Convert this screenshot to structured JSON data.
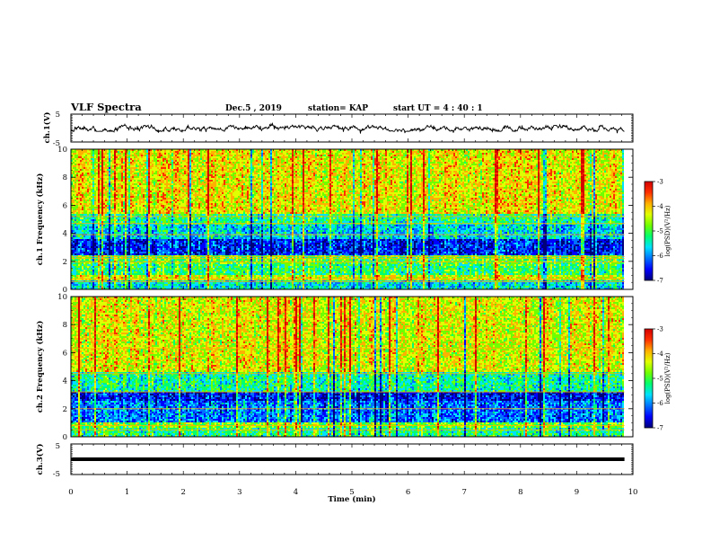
{
  "header": {
    "title": "VLF Spectra",
    "date": "Dec.5  , 2019",
    "station": "station= KAP",
    "start": "start  UT =  4 : 40 : 1"
  },
  "colors": {
    "spectrum_scale": [
      "#00007a",
      "#0000ff",
      "#0070ff",
      "#00e0ff",
      "#00ff70",
      "#70ff00",
      "#e0ff00",
      "#ffb000",
      "#ff3000",
      "#d40000"
    ],
    "trace": "#000000"
  },
  "chart_data": [
    {
      "type": "line",
      "panel": "ch1-voltage",
      "ylabel": "ch.1(V)",
      "ylim": [
        -5,
        5
      ],
      "yticks": [
        "5",
        "-5"
      ],
      "xlim": [
        0,
        10
      ],
      "series": [
        {
          "x_end": 9.85,
          "level_range": [
            -1.2,
            1.0
          ],
          "mean": -0.1
        }
      ]
    },
    {
      "type": "heatmap",
      "panel": "ch1-spectrogram",
      "ylabel": "ch.1 Frequency (kHz)",
      "xlim": [
        0,
        10
      ],
      "ylim": [
        0,
        10
      ],
      "yticks": [
        "0",
        "2",
        "4",
        "6",
        "8",
        "10"
      ],
      "x_data_end": 9.85,
      "colorbar": {
        "label": "log(PSD)(V²/Hz)",
        "range": [
          -7,
          -3
        ],
        "ticks": [
          "-3",
          "-4",
          "-5",
          "-6",
          "-7"
        ]
      },
      "bands_khz": [
        {
          "range": [
            0,
            0.6
          ],
          "value": -5.5
        },
        {
          "range": [
            0.6,
            1.0
          ],
          "value": -4.4
        },
        {
          "range": [
            1.0,
            1.8
          ],
          "value": -5.1
        },
        {
          "range": [
            1.8,
            2.4
          ],
          "value": -4.9
        },
        {
          "range": [
            2.4,
            3.6
          ],
          "value": -6.3
        },
        {
          "range": [
            3.6,
            4.6
          ],
          "value": -5.6
        },
        {
          "range": [
            4.6,
            5.4
          ],
          "value": -5.2
        },
        {
          "range": [
            5.4,
            10.0
          ],
          "value": -4.3
        }
      ],
      "lines_khz": [
        0.55,
        0.75,
        1.95,
        2.2,
        2.35,
        3.9,
        4.7,
        5.2
      ]
    },
    {
      "type": "heatmap",
      "panel": "ch2-spectrogram",
      "ylabel": "ch.2 Frequency (kHz)",
      "xlim": [
        0,
        10
      ],
      "ylim": [
        0,
        10
      ],
      "yticks": [
        "0",
        "2",
        "4",
        "6",
        "8",
        "10"
      ],
      "x_data_end": 9.85,
      "colorbar": {
        "label": "log(PSD)(V²/Hz)",
        "range": [
          -7,
          -3
        ],
        "ticks": [
          "-3",
          "-4",
          "-5",
          "-6",
          "-7"
        ]
      },
      "bands_khz": [
        {
          "range": [
            0,
            0.6
          ],
          "value": -5.2
        },
        {
          "range": [
            0.6,
            1.0
          ],
          "value": -4.8
        },
        {
          "range": [
            1.0,
            2.6
          ],
          "value": -6.0
        },
        {
          "range": [
            2.6,
            3.2
          ],
          "value": -6.4
        },
        {
          "range": [
            3.2,
            4.6
          ],
          "value": -5.3
        },
        {
          "range": [
            4.6,
            10.0
          ],
          "value": -4.4
        }
      ],
      "lines_khz": [
        0.5,
        0.8,
        2.0,
        3.2,
        4.5,
        6.3
      ]
    },
    {
      "type": "line",
      "panel": "ch3-voltage",
      "ylabel": "ch.3(V)",
      "ylim": [
        -5,
        5
      ],
      "yticks": [
        "5",
        "-5"
      ],
      "xlim": [
        0,
        10
      ],
      "xlabel": "Time  (min)",
      "xticks": [
        "0",
        "1",
        "2",
        "3",
        "4",
        "5",
        "6",
        "7",
        "8",
        "9",
        "10"
      ],
      "series": [
        {
          "x_end": 9.85,
          "level": 0.0
        }
      ]
    }
  ]
}
